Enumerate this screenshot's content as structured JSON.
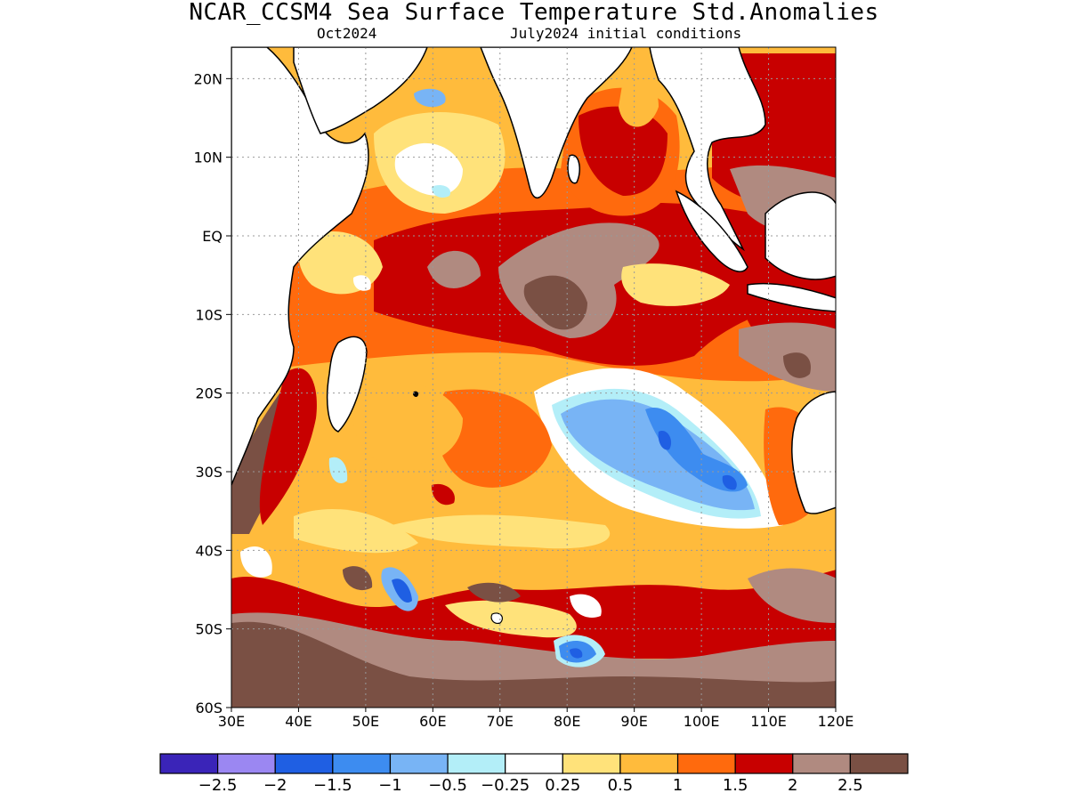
{
  "title": "NCAR_CCSM4 Sea Surface Temperature Std.Anomalies",
  "subtitle_left": "Oct2024",
  "subtitle_right": "July2024 initial conditions",
  "map": {
    "lon_range": [
      30,
      120
    ],
    "lat_range": [
      -60,
      24
    ],
    "lat_ticks": [
      {
        "value": 20,
        "label": "20N"
      },
      {
        "value": 10,
        "label": "10N"
      },
      {
        "value": 0,
        "label": "EQ"
      },
      {
        "value": -10,
        "label": "10S"
      },
      {
        "value": -20,
        "label": "20S"
      },
      {
        "value": -30,
        "label": "30S"
      },
      {
        "value": -40,
        "label": "40S"
      },
      {
        "value": -50,
        "label": "50S"
      },
      {
        "value": -60,
        "label": "60S"
      }
    ],
    "lon_ticks": [
      {
        "value": 30,
        "label": "30E"
      },
      {
        "value": 40,
        "label": "40E"
      },
      {
        "value": 50,
        "label": "50E"
      },
      {
        "value": 60,
        "label": "60E"
      },
      {
        "value": 70,
        "label": "70E"
      },
      {
        "value": 80,
        "label": "80E"
      },
      {
        "value": 90,
        "label": "90E"
      },
      {
        "value": 100,
        "label": "100E"
      },
      {
        "value": 110,
        "label": "110E"
      },
      {
        "value": 120,
        "label": "120E"
      }
    ],
    "grid": "dotted",
    "land_color": "#ffffff",
    "coast_color": "#000000"
  },
  "colorbar": {
    "colors": [
      "#3a24b8",
      "#9b87f2",
      "#1f5fe3",
      "#3d8cf0",
      "#78b4f5",
      "#b3eef8",
      "#ffffff",
      "#ffe27a",
      "#ffbb3c",
      "#ff6a0d",
      "#c80000",
      "#b08a80",
      "#7a5044"
    ],
    "labels": [
      "-2.5",
      "-2",
      "-1.5",
      "-1",
      "-0.5",
      "-0.25",
      "0.25",
      "0.5",
      "1",
      "1.5",
      "2",
      "2.5"
    ]
  },
  "anomaly_fields": [
    {
      "name": "arabian-sea-warm",
      "lon": 62,
      "lat": 15,
      "level": 0.8
    },
    {
      "name": "arabian-sea-cool",
      "lon": 57,
      "lat": 10,
      "level": 0.1
    },
    {
      "name": "arabian-sea-blue",
      "lon": 57,
      "lat": 18,
      "level": -0.5
    },
    {
      "name": "bay-of-bengal",
      "lon": 88,
      "lat": 12,
      "level": 1.6
    },
    {
      "name": "central-brown",
      "lon": 88,
      "lat": -6,
      "level": 2.3
    },
    {
      "name": "nw-brown",
      "lon": 66,
      "lat": -8,
      "level": 2.2
    },
    {
      "name": "se-australia-cool",
      "lon": 97,
      "lat": -28,
      "level": -1.2
    },
    {
      "name": "sw-cold-spot",
      "lon": 56,
      "lat": -46,
      "level": -1.3
    },
    {
      "name": "south-cold-spot",
      "lon": 81,
      "lat": -54,
      "level": -1.4
    },
    {
      "name": "southern-ocean-brown",
      "lon": 75,
      "lat": -57,
      "level": 2.6
    },
    {
      "name": "indonesia-red",
      "lon": 113,
      "lat": 10,
      "level": 2.0
    },
    {
      "name": "agulhas-brown",
      "lon": 33,
      "lat": -30,
      "level": 2.5
    }
  ]
}
